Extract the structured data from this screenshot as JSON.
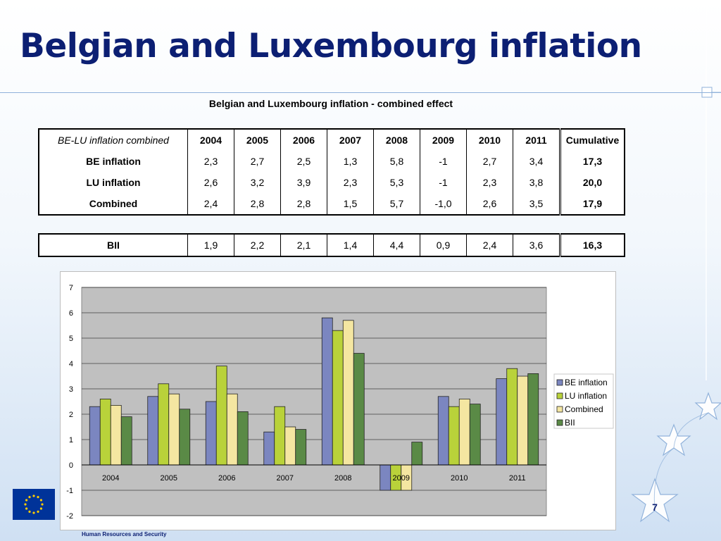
{
  "slide": {
    "title": "Belgian and Luxembourg inflation",
    "page_number": "7",
    "footer": "Human Resources and Security"
  },
  "table": {
    "caption": "Belgian and Luxembourg inflation - combined effect",
    "header_label": "BE-LU inflation combined",
    "years": [
      "2004",
      "2005",
      "2006",
      "2007",
      "2008",
      "2009",
      "2010",
      "2011"
    ],
    "cumulative_label": "Cumulative",
    "rows": [
      {
        "label": "BE inflation",
        "values": [
          "2,3",
          "2,7",
          "2,5",
          "1,3",
          "5,8",
          "-1",
          "2,7",
          "3,4"
        ],
        "cumulative": "17,3"
      },
      {
        "label": "LU inflation",
        "values": [
          "2,6",
          "3,2",
          "3,9",
          "2,3",
          "5,3",
          "-1",
          "2,3",
          "3,8"
        ],
        "cumulative": "20,0"
      },
      {
        "label": "Combined",
        "values": [
          "2,4",
          "2,8",
          "2,8",
          "1,5",
          "5,7",
          "-1,0",
          "2,6",
          "3,5"
        ],
        "cumulative": "17,9"
      }
    ],
    "bii_row": {
      "label": "BII",
      "values": [
        "1,9",
        "2,2",
        "2,1",
        "1,4",
        "4,4",
        "0,9",
        "2,4",
        "3,6"
      ],
      "cumulative": "16,3"
    }
  },
  "chart_data": {
    "type": "bar",
    "categories": [
      "2004",
      "2005",
      "2006",
      "2007",
      "2008",
      "2009",
      "2010",
      "2011"
    ],
    "series": [
      {
        "name": "BE inflation",
        "values": [
          2.3,
          2.7,
          2.5,
          1.3,
          5.8,
          -1,
          2.7,
          3.4
        ],
        "color": "#7b86c0"
      },
      {
        "name": "LU inflation",
        "values": [
          2.6,
          3.2,
          3.9,
          2.3,
          5.3,
          -1,
          2.3,
          3.8
        ],
        "color": "#b9d23a"
      },
      {
        "name": "Combined",
        "values": [
          2.35,
          2.8,
          2.8,
          1.5,
          5.7,
          -1.0,
          2.6,
          3.5
        ],
        "color": "#f4e6a1"
      },
      {
        "name": "BII",
        "values": [
          1.9,
          2.2,
          2.1,
          1.4,
          4.4,
          0.9,
          2.4,
          3.6
        ],
        "color": "#5a8a46"
      }
    ],
    "ylim": [
      -2,
      7
    ],
    "yticks": [
      7,
      6,
      5,
      4,
      3,
      2,
      1,
      0,
      -1,
      -2
    ],
    "grid": true,
    "plot_background": "#c0c0c0",
    "legend_position": "right"
  }
}
